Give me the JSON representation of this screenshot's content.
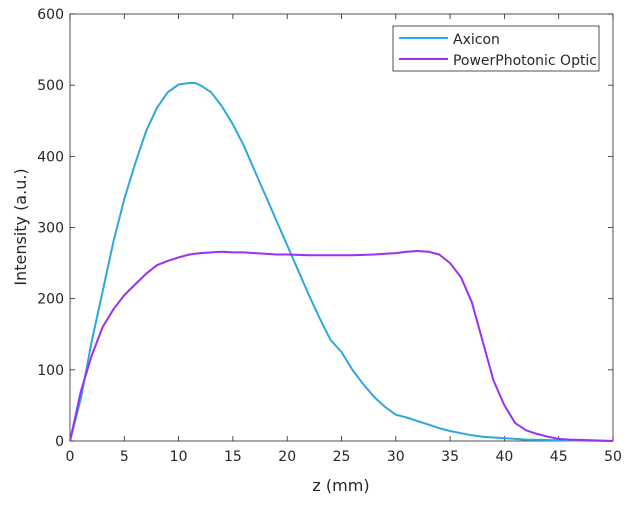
{
  "chart_data": {
    "type": "line",
    "title": "",
    "xlabel": "z (mm)",
    "ylabel": "Intensity (a.u.)",
    "xlim": [
      0,
      50
    ],
    "ylim": [
      0,
      600
    ],
    "xticks": [
      0,
      5,
      10,
      15,
      20,
      25,
      30,
      35,
      40,
      45,
      50
    ],
    "yticks": [
      0,
      100,
      200,
      300,
      400,
      500,
      600
    ],
    "grid": false,
    "legend_position": "top-right",
    "series": [
      {
        "name": "Axicon",
        "color": "#2ea7e0",
        "x": [
          0,
          1,
          2,
          3,
          4,
          5,
          6,
          7,
          8,
          9,
          10,
          11,
          11.5,
          12,
          13,
          14,
          15,
          16,
          17,
          18,
          19,
          20,
          21,
          22,
          23,
          24,
          25,
          26,
          27,
          28,
          29,
          30,
          31,
          32,
          33,
          34,
          35,
          36,
          37,
          38,
          40,
          42,
          45,
          50
        ],
        "y": [
          0,
          60,
          140,
          210,
          280,
          340,
          390,
          435,
          468,
          490,
          501,
          503,
          503,
          500,
          490,
          470,
          445,
          415,
          380,
          345,
          310,
          275,
          240,
          205,
          172,
          142,
          125,
          100,
          80,
          62,
          48,
          37,
          33,
          28,
          23,
          18,
          14,
          11,
          8,
          6,
          4,
          2,
          1,
          0
        ]
      },
      {
        "name": "PowerPhotonic Optic",
        "color": "#9b30f2",
        "x": [
          0,
          1,
          2,
          3,
          4,
          5,
          6,
          7,
          8,
          9,
          10,
          11,
          12,
          13,
          14,
          15,
          16,
          17,
          18,
          19,
          20,
          22,
          24,
          26,
          28,
          30,
          31,
          32,
          33,
          34,
          35,
          36,
          37,
          38,
          39,
          40,
          41,
          42,
          43,
          44,
          45,
          46,
          48,
          50
        ],
        "y": [
          0,
          70,
          120,
          160,
          185,
          205,
          220,
          235,
          247,
          253,
          258,
          262,
          264,
          265,
          266,
          265,
          265,
          264,
          263,
          262,
          262,
          261,
          261,
          261,
          262,
          264,
          266,
          267,
          266,
          262,
          250,
          230,
          195,
          140,
          85,
          50,
          25,
          15,
          10,
          6,
          3,
          2,
          1,
          0
        ]
      }
    ]
  }
}
